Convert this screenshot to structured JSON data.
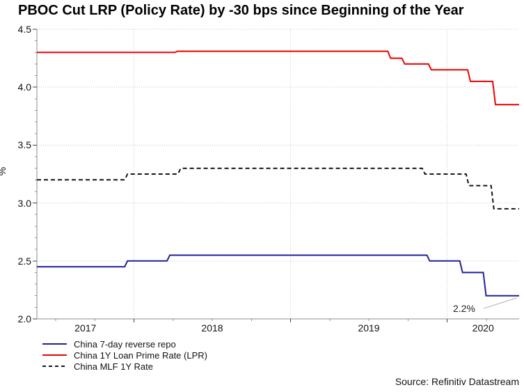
{
  "title": "PBOC Cut LRP (Policy Rate) by -30 bps since Beginning of the Year",
  "source": "Source: Refinitiv Datastream",
  "chart_data": {
    "type": "line",
    "title": "PBOC Cut LRP (Policy Rate) by -30 bps since Beginning of the Year",
    "xlabel": "",
    "ylabel": "%",
    "xlim": [
      2017.38,
      2020.46
    ],
    "ylim": [
      2.0,
      4.5
    ],
    "grid": "dotted",
    "legend_position": "bottom-left",
    "y_ticks": [
      2.0,
      2.5,
      3.0,
      3.5,
      4.0,
      4.5
    ],
    "y_tick_labels": [
      "2.0",
      "2.5",
      "3.0",
      "3.5",
      "4.0",
      "4.5"
    ],
    "year_boundaries": [
      2018,
      2019,
      2020
    ],
    "x_year_labels": [
      "2017",
      "2018",
      "2019",
      "2020"
    ],
    "series": [
      {
        "name": "China 7-day reverse repo",
        "color": "#20209a",
        "style": "solid",
        "points": [
          [
            2017.38,
            2.45
          ],
          [
            2017.95,
            2.5
          ],
          [
            2018.22,
            2.55
          ],
          [
            2019.88,
            2.5
          ],
          [
            2020.09,
            2.4
          ],
          [
            2020.24,
            2.2
          ],
          [
            2020.46,
            2.2
          ]
        ]
      },
      {
        "name": "China 1Y Loan Prime Rate (LPR)",
        "color": "#ee0000",
        "style": "solid",
        "points": [
          [
            2017.38,
            4.3
          ],
          [
            2018.27,
            4.31
          ],
          [
            2019.63,
            4.25
          ],
          [
            2019.72,
            4.2
          ],
          [
            2019.89,
            4.15
          ],
          [
            2020.14,
            4.05
          ],
          [
            2020.3,
            3.85
          ],
          [
            2020.46,
            3.85
          ]
        ]
      },
      {
        "name": "China MLF 1Y Rate",
        "color": "#141414",
        "style": "dashed",
        "points": [
          [
            2017.38,
            3.2
          ],
          [
            2017.95,
            3.25
          ],
          [
            2018.29,
            3.3
          ],
          [
            2019.85,
            3.25
          ],
          [
            2020.13,
            3.15
          ],
          [
            2020.29,
            2.95
          ],
          [
            2020.46,
            2.95
          ]
        ]
      }
    ],
    "annotation": {
      "text": "2.2%",
      "x": 2020.24,
      "y": 2.2
    },
    "colors": {
      "gridline": "#c9c9c9",
      "axis": "#8c8c8c",
      "tick": "#404040",
      "minor_tick": "#909090",
      "callout": "#b3b3b3"
    }
  }
}
